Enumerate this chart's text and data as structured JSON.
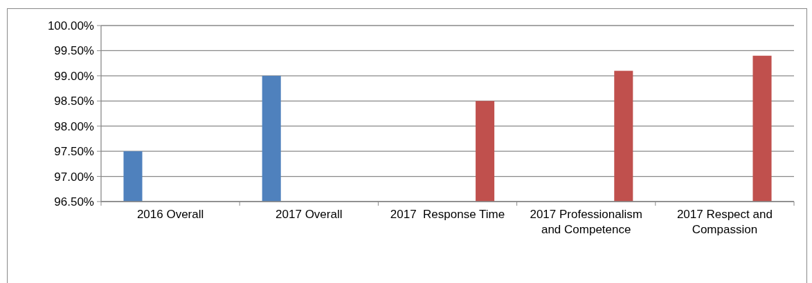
{
  "chart_data": {
    "type": "bar",
    "categories": [
      "2016 Overall",
      "2017 Overall",
      "2017  Response Time",
      "2017 Professionalism and Competence",
      "2017 Respect and Compassion"
    ],
    "series": [
      {
        "color": "#4f81bd",
        "values": [
          97.5,
          99.0,
          null,
          null,
          null
        ]
      },
      {
        "color": "#c0504d",
        "values": [
          null,
          null,
          98.5,
          99.1,
          99.4
        ]
      }
    ],
    "ylim": [
      96.5,
      100
    ],
    "yticks": [
      {
        "value": 96.5,
        "label": "96.50%"
      },
      {
        "value": 97,
        "label": "97.00%"
      },
      {
        "value": 97.5,
        "label": "97.50%"
      },
      {
        "value": 98,
        "label": "98.00%"
      },
      {
        "value": 98.5,
        "label": "98.50%"
      },
      {
        "value": 99,
        "label": "99.00%"
      },
      {
        "value": 99.5,
        "label": "99.50%"
      },
      {
        "value": 100,
        "label": "100.00%"
      }
    ],
    "grid": "y"
  }
}
